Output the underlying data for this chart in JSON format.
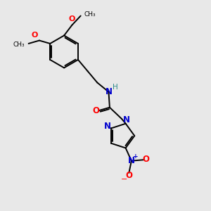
{
  "background_color": "#e8e8e8",
  "bond_color": "#000000",
  "N_color": "#0000cd",
  "O_color": "#ff0000",
  "H_color": "#2e8b8b",
  "figsize": [
    3.0,
    3.0
  ],
  "dpi": 100,
  "xlim": [
    0,
    10
  ],
  "ylim": [
    0,
    10
  ],
  "lw": 1.4,
  "fs": 7.0
}
